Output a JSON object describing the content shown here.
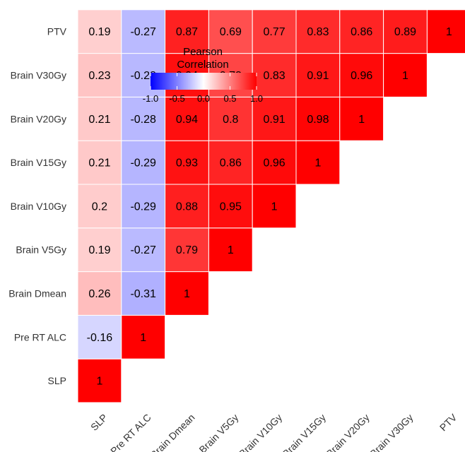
{
  "chart_data": {
    "type": "heatmap",
    "variables": [
      "SLP",
      "Pre RT ALC",
      "Brain Dmean",
      "Brain V5Gy",
      "Brain V10Gy",
      "Brain V15Gy",
      "Brain V20Gy",
      "Brain V30Gy",
      "PTV"
    ],
    "matrix": [
      [
        "1",
        null,
        null,
        null,
        null,
        null,
        null,
        null,
        null
      ],
      [
        "-0.16",
        "1",
        null,
        null,
        null,
        null,
        null,
        null,
        null
      ],
      [
        "0.26",
        "-0.31",
        "1",
        null,
        null,
        null,
        null,
        null,
        null
      ],
      [
        "0.19",
        "-0.27",
        "0.79",
        "1",
        null,
        null,
        null,
        null,
        null
      ],
      [
        "0.2",
        "-0.29",
        "0.88",
        "0.95",
        "1",
        null,
        null,
        null,
        null
      ],
      [
        "0.21",
        "-0.29",
        "0.93",
        "0.86",
        "0.96",
        "1",
        null,
        null,
        null
      ],
      [
        "0.21",
        "-0.28",
        "0.94",
        "0.8",
        "0.91",
        "0.98",
        "1",
        null,
        null
      ],
      [
        "0.23",
        "-0.28",
        "0.94",
        "0.73",
        "0.83",
        "0.91",
        "0.96",
        "1",
        null
      ],
      [
        "0.19",
        "-0.27",
        "0.87",
        "0.69",
        "0.77",
        "0.83",
        "0.86",
        "0.89",
        "1"
      ]
    ],
    "legend": {
      "title_line1": "Pearson",
      "title_line2": "Correlation",
      "ticks": [
        "-1.0",
        "-0.5",
        "0.0",
        "0.5",
        "1.0"
      ],
      "tick_values": [
        -1.0,
        -0.5,
        0.0,
        0.5,
        1.0
      ],
      "range": [
        -1,
        1
      ],
      "colors": {
        "low": "#0000ff",
        "mid": "#ffffff",
        "high": "#ff0000"
      },
      "placement": "top-left"
    },
    "grid": false
  }
}
